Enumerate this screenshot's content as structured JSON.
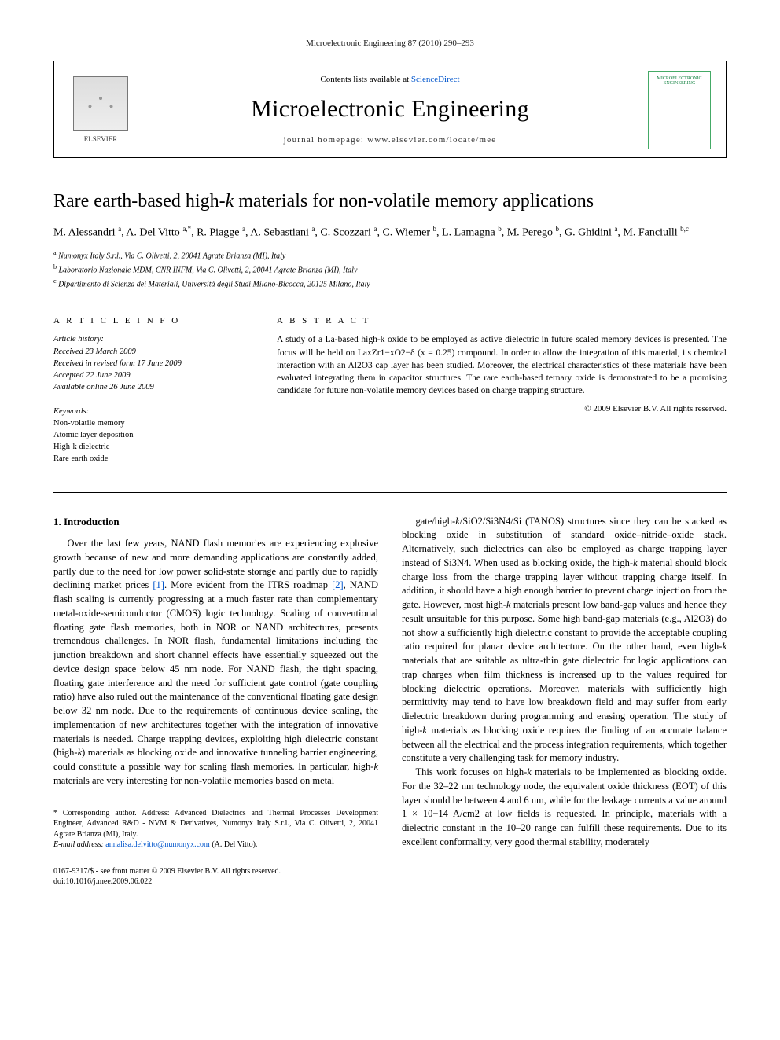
{
  "running_head": "Microelectronic Engineering 87 (2010) 290–293",
  "masthead": {
    "availability_prefix": "Contents lists available at ",
    "availability_link": "ScienceDirect",
    "journal_name": "Microelectronic Engineering",
    "homepage_label": "journal homepage: www.elsevier.com/locate/mee",
    "publisher": "ELSEVIER",
    "cover_text": "MICROELECTRONIC ENGINEERING"
  },
  "title_parts": {
    "pre": "Rare earth-based high-",
    "k": "k",
    "post": " materials for non-volatile memory applications"
  },
  "authors_html": "M. Alessandri|a|, A. Del Vitto|a,*|, R. Piagge|a|, A. Sebastiani|a|, C. Scozzari|a|, C. Wiemer|b|, L. Lamagna|b|, M. Perego|b|, G. Ghidini|a|, M. Fanciulli|b,c|",
  "affiliations": [
    {
      "mark": "a",
      "text": "Numonyx Italy S.r.l., Via C. Olivetti, 2, 20041 Agrate Brianza (MI), Italy"
    },
    {
      "mark": "b",
      "text": "Laboratorio Nazionale MDM, CNR INFM, Via C. Olivetti, 2, 20041 Agrate Brianza (MI), Italy"
    },
    {
      "mark": "c",
      "text": "Dipartimento di Scienza dei Materiali, Università degli Studi Milano-Bicocca, 20125 Milano, Italy"
    }
  ],
  "article_info": {
    "heading": "A R T I C L E   I N F O",
    "history_label": "Article history:",
    "history": [
      "Received 23 March 2009",
      "Received in revised form 17 June 2009",
      "Accepted 22 June 2009",
      "Available online 26 June 2009"
    ],
    "keywords_label": "Keywords:",
    "keywords": [
      "Non-volatile memory",
      "Atomic layer deposition",
      "High-k dielectric",
      "Rare earth oxide"
    ]
  },
  "abstract": {
    "heading": "A B S T R A C T",
    "text": "A study of a La-based high-k oxide to be employed as active dielectric in future scaled memory devices is presented. The focus will be held on LaxZr1−xO2−δ (x = 0.25) compound. In order to allow the integration of this material, its chemical interaction with an Al2O3 cap layer has been studied. Moreover, the electrical characteristics of these materials have been evaluated integrating them in capacitor structures. The rare earth-based ternary oxide is demonstrated to be a promising candidate for future non-volatile memory devices based on charge trapping structure.",
    "copyright": "© 2009 Elsevier B.V. All rights reserved."
  },
  "section1": {
    "heading": "1. Introduction",
    "p1": "Over the last few years, NAND flash memories are experiencing explosive growth because of new and more demanding applications are constantly added, partly due to the need for low power solid-state storage and partly due to rapidly declining market prices [1]. More evident from the ITRS roadmap [2], NAND flash scaling is currently progressing at a much faster rate than complementary metal-oxide-semiconductor (CMOS) logic technology. Scaling of conventional floating gate flash memories, both in NOR or NAND architectures, presents tremendous challenges. In NOR flash, fundamental limitations including the junction breakdown and short channel effects have essentially squeezed out the device design space below 45 nm node. For NAND flash, the tight spacing, floating gate interference and the need for sufficient gate control (gate coupling ratio) have also ruled out the maintenance of the conventional floating gate design below 32 nm node. Due to the requirements of continuous device scaling, the implementation of new architectures together with the integration of innovative materials is needed. Charge trapping devices, exploiting high dielectric constant (high-k) materials as blocking oxide and innovative tunneling barrier engineering, could constitute a possible way for scaling flash memories. In particular, high-k materials are very interesting for non-volatile memories based on metal",
    "p2": "gate/high-k/SiO2/Si3N4/Si (TANOS) structures since they can be stacked as blocking oxide in substitution of standard oxide–nitride–oxide stack. Alternatively, such dielectrics can also be employed as charge trapping layer instead of Si3N4. When used as blocking oxide, the high-k material should block charge loss from the charge trapping layer without trapping charge itself. In addition, it should have a high enough barrier to prevent charge injection from the gate. However, most high-k materials present low band-gap values and hence they result unsuitable for this purpose. Some high band-gap materials (e.g., Al2O3) do not show a sufficiently high dielectric constant to provide the acceptable coupling ratio required for planar device architecture. On the other hand, even high-k materials that are suitable as ultra-thin gate dielectric for logic applications can trap charges when film thickness is increased up to the values required for blocking dielectric operations. Moreover, materials with sufficiently high permittivity may tend to have low breakdown field and may suffer from early dielectric breakdown during programming and erasing operation. The study of high-k materials as blocking oxide requires the finding of an accurate balance between all the electrical and the process integration requirements, which together constitute a very challenging task for memory industry.",
    "p3": "This work focuses on high-k materials to be implemented as blocking oxide. For the 32–22 nm technology node, the equivalent oxide thickness (EOT) of this layer should be between 4 and 6 nm, while for the leakage currents a value around 1 × 10−14 A/cm2 at low fields is requested. In principle, materials with a dielectric constant in the 10–20 range can fulfill these requirements. Due to its excellent conformality, very good thermal stability, moderately"
  },
  "footnote": {
    "corr_label": "* Corresponding author. Address: Advanced Dielectrics and Thermal Processes Development Engineer, Advanced R&D - NVM & Derivatives, Numonyx Italy S.r.l., Via C. Olivetti, 2, 20041 Agrate Brianza (MI), Italy.",
    "email_label": "E-mail address:",
    "email": "annalisa.delvitto@numonyx.com",
    "email_who": "(A. Del Vitto)."
  },
  "footer": {
    "line1": "0167-9317/$ - see front matter © 2009 Elsevier B.V. All rights reserved.",
    "line2": "doi:10.1016/j.mee.2009.06.022"
  },
  "colors": {
    "link": "#0055cc",
    "text": "#000000",
    "cover_accent": "#0a7d3a"
  }
}
